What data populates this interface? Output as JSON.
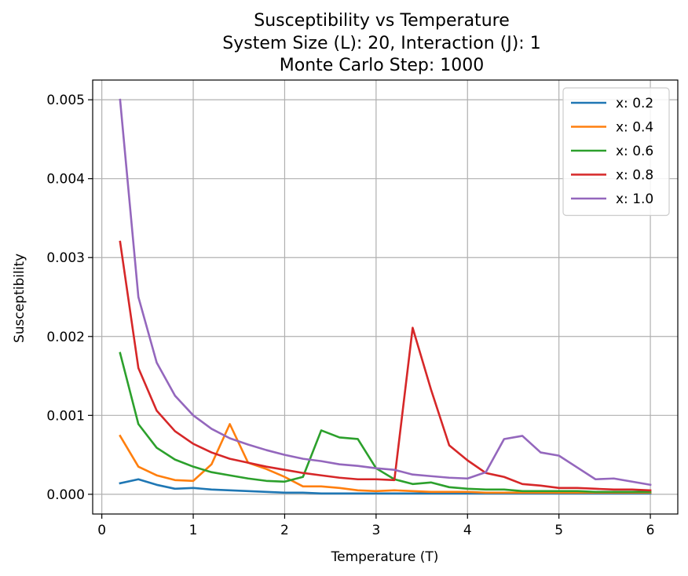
{
  "chart_data": {
    "type": "line",
    "title_lines": [
      "Susceptibility vs Temperature",
      "System Size (L): 20, Interaction (J): 1",
      "Monte Carlo Step: 1000"
    ],
    "xlabel": "Temperature (T)",
    "ylabel": "Susceptibility",
    "xlim": [
      -0.1,
      6.3
    ],
    "ylim": [
      -0.00025,
      0.00525
    ],
    "xticks": [
      0,
      1,
      2,
      3,
      4,
      5,
      6
    ],
    "xtick_labels": [
      "0",
      "1",
      "2",
      "3",
      "4",
      "5",
      "6"
    ],
    "yticks": [
      0,
      0.001,
      0.002,
      0.003,
      0.004,
      0.005
    ],
    "ytick_labels": [
      "0.000",
      "0.001",
      "0.002",
      "0.003",
      "0.004",
      "0.005"
    ],
    "grid": true,
    "legend_position": "top-right",
    "x": [
      0.2,
      0.4,
      0.6,
      0.8,
      1.0,
      1.2,
      1.4,
      1.6,
      1.8,
      2.0,
      2.2,
      2.4,
      2.6,
      2.8,
      3.0,
      3.2,
      3.4,
      3.6,
      3.8,
      4.0,
      4.2,
      4.4,
      4.6,
      4.8,
      5.0,
      5.2,
      5.4,
      5.6,
      5.8,
      6.0
    ],
    "series": [
      {
        "name": "x: 0.2",
        "color": "#1f77b4",
        "values": [
          0.00014,
          0.00019,
          0.00012,
          7e-05,
          8e-05,
          6e-05,
          5e-05,
          4e-05,
          3e-05,
          2e-05,
          2e-05,
          1e-05,
          1e-05,
          1e-05,
          1e-05,
          1e-05,
          1e-05,
          1e-05,
          1e-05,
          1e-05,
          1e-05,
          1e-05,
          1e-05,
          1e-05,
          1e-05,
          1e-05,
          1e-05,
          1e-05,
          1e-05,
          1e-05
        ]
      },
      {
        "name": "x: 0.4",
        "color": "#ff7f0e",
        "values": [
          0.00074,
          0.00035,
          0.00024,
          0.00018,
          0.00017,
          0.00038,
          0.00089,
          0.0004,
          0.00032,
          0.00022,
          0.0001,
          0.0001,
          8e-05,
          5e-05,
          4e-05,
          5e-05,
          4e-05,
          3e-05,
          3e-05,
          3e-05,
          2e-05,
          2e-05,
          2e-05,
          2e-05,
          2e-05,
          2e-05,
          2e-05,
          2e-05,
          2e-05,
          2e-05
        ]
      },
      {
        "name": "x: 0.6",
        "color": "#2ca02c",
        "values": [
          0.00179,
          0.00089,
          0.00059,
          0.00044,
          0.00035,
          0.00028,
          0.00024,
          0.0002,
          0.00017,
          0.00016,
          0.00022,
          0.00081,
          0.00072,
          0.0007,
          0.00033,
          0.00019,
          0.00013,
          0.00015,
          9e-05,
          7e-05,
          6e-05,
          6e-05,
          4e-05,
          4e-05,
          4e-05,
          4e-05,
          3e-05,
          3e-05,
          3e-05,
          3e-05
        ]
      },
      {
        "name": "x: 0.8",
        "color": "#d62728",
        "values": [
          0.0032,
          0.0016,
          0.00106,
          0.0008,
          0.00064,
          0.00053,
          0.00045,
          0.0004,
          0.00035,
          0.00031,
          0.00027,
          0.00024,
          0.00021,
          0.00019,
          0.00019,
          0.00018,
          0.00211,
          0.00133,
          0.00062,
          0.00043,
          0.00027,
          0.00022,
          0.00013,
          0.00011,
          8e-05,
          8e-05,
          7e-05,
          6e-05,
          6e-05,
          5e-05
        ]
      },
      {
        "name": "x: 1.0",
        "color": "#9467bd",
        "values": [
          0.005,
          0.0025,
          0.00167,
          0.00125,
          0.001,
          0.00083,
          0.00071,
          0.00063,
          0.00056,
          0.0005,
          0.00045,
          0.00042,
          0.00038,
          0.00036,
          0.00033,
          0.00031,
          0.00025,
          0.00023,
          0.00021,
          0.0002,
          0.00028,
          0.0007,
          0.00074,
          0.00053,
          0.00049,
          0.00034,
          0.00019,
          0.0002,
          0.00016,
          0.00012
        ]
      }
    ]
  }
}
